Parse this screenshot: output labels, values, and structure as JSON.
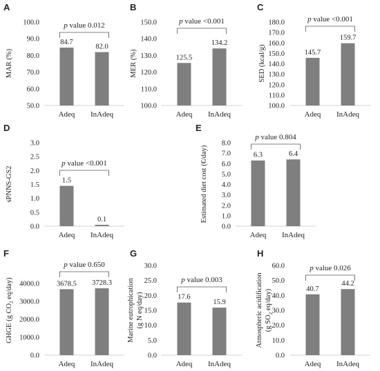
{
  "chart_data": [
    {
      "panel": "A",
      "type": "bar",
      "categories": [
        "Adeq",
        "InAdeq"
      ],
      "values": [
        84.7,
        82.0
      ],
      "value_labels": [
        "84.7",
        "82.0"
      ],
      "ylabel": "MAR (%)",
      "ylim": [
        50,
        100
      ],
      "yticks": [
        "50.0",
        "60.0",
        "70.0",
        "80.0",
        "90.0",
        "100.0"
      ],
      "p_text": "p value 0.012"
    },
    {
      "panel": "B",
      "type": "bar",
      "categories": [
        "Adeq",
        "InAdeq"
      ],
      "values": [
        125.5,
        134.2
      ],
      "value_labels": [
        "125.5",
        "134.2"
      ],
      "ylabel": "MER (%)",
      "ylim": [
        100,
        150
      ],
      "yticks": [
        "100.0",
        "110.0",
        "120.0",
        "130.0",
        "140.0",
        "150.0"
      ],
      "p_text": "p value <0.001"
    },
    {
      "panel": "C",
      "type": "bar",
      "categories": [
        "Adeq",
        "InAdeq"
      ],
      "values": [
        145.7,
        159.7
      ],
      "value_labels": [
        "145.7",
        "159.7"
      ],
      "ylabel": "SED (kcal/g)",
      "ylim": [
        100,
        180
      ],
      "yticks": [
        "100.0",
        "110.0",
        "120.0",
        "130.0",
        "140.0",
        "150.0",
        "160.0",
        "170.0",
        "180.0"
      ],
      "p_text": "p value <0.001"
    },
    {
      "panel": "D",
      "type": "bar",
      "categories": [
        "Adeq",
        "InAdeq"
      ],
      "values": [
        1.45,
        0.05
      ],
      "value_labels": [
        "1.5",
        "0.1"
      ],
      "ylabel": "sPNNS-GS2",
      "ylim": [
        0,
        3
      ],
      "yticks": [
        "0.0",
        "0.5",
        "1.0",
        "1.5",
        "2.0",
        "2.5",
        "3.0"
      ],
      "p_text": "p value <0.001"
    },
    {
      "panel": "E",
      "type": "bar",
      "categories": [
        "Adeq",
        "InAdeq"
      ],
      "values": [
        6.3,
        6.4
      ],
      "value_labels": [
        "6.3",
        "6.4"
      ],
      "ylabel": "Estimated diet cost (€/day)",
      "ylim": [
        0,
        8
      ],
      "yticks": [
        "0.0",
        "1.0",
        "2.0",
        "3.0",
        "4.0",
        "5.0",
        "6.0",
        "7.0",
        "8.0"
      ],
      "p_text": "p value 0.804"
    },
    {
      "panel": "F",
      "type": "bar",
      "categories": [
        "Adeq",
        "InAdeq"
      ],
      "values": [
        3678.5,
        3728.3
      ],
      "value_labels": [
        "3678.5",
        "3728.3"
      ],
      "ylabel": "GHGE (g CO",
      "ylabel_sub": "2",
      "ylabel_rest": " eq/day)",
      "ylim": [
        0,
        5000
      ],
      "yticks": [
        "0.0",
        "1000.0",
        "2000.0",
        "3000.0",
        "4000.0"
      ],
      "p_text": "p value 0.650"
    },
    {
      "panel": "G",
      "type": "bar",
      "categories": [
        "Adeq",
        "InAdeq"
      ],
      "values": [
        17.6,
        15.9
      ],
      "value_labels": [
        "17.6",
        "15.9"
      ],
      "ylabel": "Marine eutrophication",
      "ylabel2": "(g N eq/day)",
      "ylim": [
        0,
        30
      ],
      "yticks": [
        "0.0",
        "5.0",
        "10.0",
        "15.0",
        "20.0",
        "25.0",
        "30.0"
      ],
      "p_text": "p value 0.003"
    },
    {
      "panel": "H",
      "type": "bar",
      "categories": [
        "Adeq",
        "InAdeq"
      ],
      "values": [
        40.7,
        44.2
      ],
      "value_labels": [
        "40.7",
        "44.2"
      ],
      "ylabel": "Atmospheric acidification",
      "ylabel2": "(g SO",
      "ylabel2_sub": "2",
      "ylabel2_rest": " eq/day)",
      "ylim": [
        0,
        60
      ],
      "yticks": [
        "0.0",
        "10.0",
        "20.0",
        "30.0",
        "40.0",
        "50.0",
        "60.0"
      ],
      "p_text": "p value 0.026"
    }
  ],
  "colors": {
    "bar": "#7f7f7f",
    "axis": "#d0d0d0",
    "text": "#222222"
  }
}
